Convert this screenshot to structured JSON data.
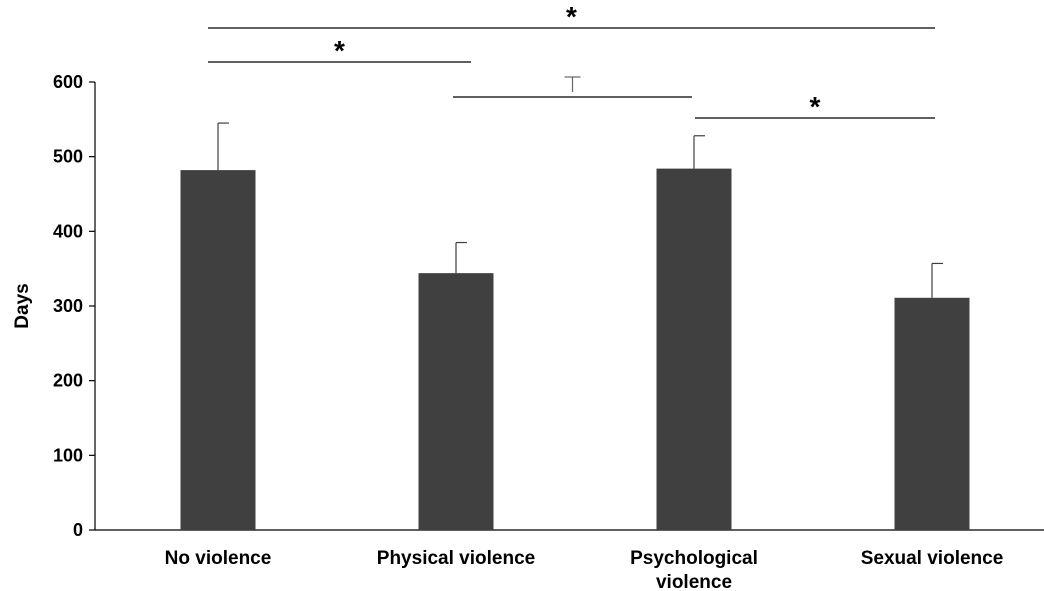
{
  "chart_data": {
    "type": "bar",
    "categories": [
      "No violence",
      "Physical violence",
      "Psychological violence",
      "Sexual violence"
    ],
    "category_lines": [
      [
        "No violence"
      ],
      [
        "Physical violence"
      ],
      [
        "Psychological",
        "violence"
      ],
      [
        "Sexual violence"
      ]
    ],
    "values": [
      482,
      344,
      484,
      311
    ],
    "errors": [
      63,
      41,
      44,
      46
    ],
    "title": "",
    "xlabel": "",
    "ylabel": "Days",
    "ylim": [
      0,
      600
    ],
    "yticks": [
      0,
      100,
      200,
      300,
      400,
      500,
      600
    ],
    "grid": false,
    "colors": {
      "bar": "#404040",
      "axis": "#000000"
    },
    "annotations": [
      {
        "from": 0,
        "to": 3,
        "label": "*",
        "kind": "significant"
      },
      {
        "from": 0,
        "to": 1,
        "label": "*",
        "kind": "significant"
      },
      {
        "from": 1,
        "to": 2,
        "label": "⊤",
        "kind": "trend"
      },
      {
        "from": 2,
        "to": 3,
        "label": "*",
        "kind": "significant"
      }
    ]
  }
}
